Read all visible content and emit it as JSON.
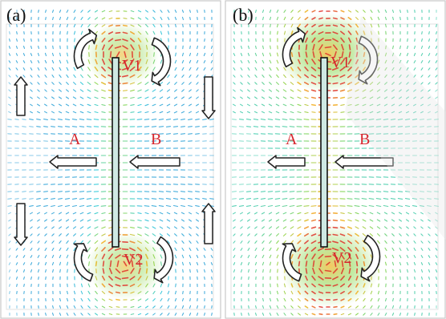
{
  "panels": [
    {
      "label": "(a)",
      "vortex_top": "V1",
      "vortex_bottom": "V2",
      "region_left": "A",
      "region_right": "B"
    },
    {
      "label": "(b)",
      "vortex_top": "V1",
      "vortex_bottom": "V2",
      "region_left": "A",
      "region_right": "B"
    }
  ],
  "colors": {
    "label_red": "#d6262d",
    "plate_fill": "#1a6b5c",
    "hot": "#e0322a",
    "warm": "#f2b21d",
    "mid": "#7fd23c",
    "cool": "#22c7d6",
    "cold": "#2f6fd6",
    "watermark": "#e6e6e6"
  }
}
